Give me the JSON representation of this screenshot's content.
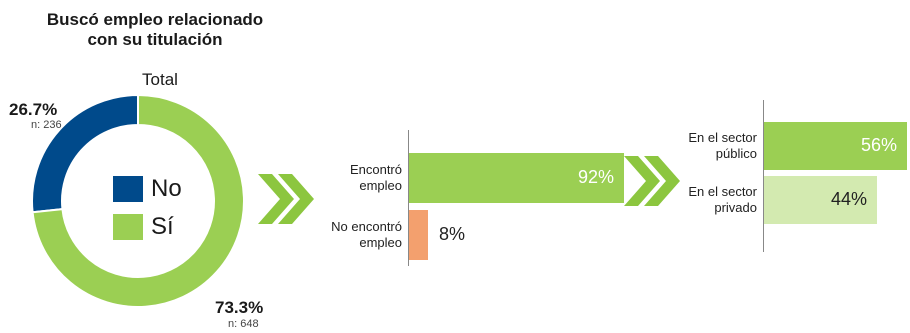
{
  "colors": {
    "si": "#9BCF53",
    "no": "#004A8B",
    "no_encontro": "#F3A06E",
    "privado": "#D3EAB0",
    "chevron": "#8CC63F",
    "white": "#ffffff"
  },
  "chart_data": [
    {
      "type": "pie",
      "title": "Buscó empleo relacionado\ncon su titulación",
      "subtitle": "Total",
      "slices": [
        {
          "label": "No",
          "pct_label": "26.7%",
          "n_label": "n: 236",
          "value": 26.7,
          "count": 236
        },
        {
          "label": "Sí",
          "pct_label": "73.3%",
          "n_label": "n: 648",
          "value": 73.3,
          "count": 648
        }
      ],
      "legend": [
        {
          "label": "No"
        },
        {
          "label": "Sí"
        }
      ]
    },
    {
      "type": "bar",
      "orientation": "horizontal",
      "categories": [
        "Encontró\nempleo",
        "No encontró\nempleo"
      ],
      "values": [
        92,
        8
      ],
      "value_labels": [
        "92%",
        "8%"
      ],
      "xlim": [
        0,
        100
      ]
    },
    {
      "type": "bar",
      "orientation": "horizontal",
      "categories": [
        "En el sector\npúblico",
        "En el sector\nprivado"
      ],
      "values": [
        56,
        44
      ],
      "value_labels": [
        "56%",
        "44%"
      ],
      "xlim": [
        0,
        100
      ]
    }
  ]
}
